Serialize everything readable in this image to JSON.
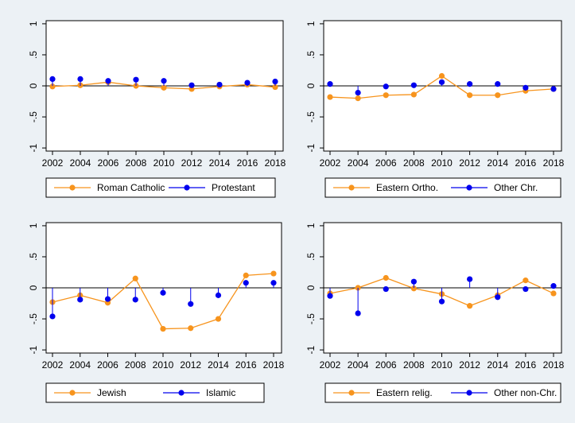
{
  "chart_data": [
    {
      "type": "line",
      "title": "",
      "xlabel": "",
      "ylabel": "",
      "x": [
        2002,
        2004,
        2006,
        2008,
        2010,
        2012,
        2014,
        2016,
        2018
      ],
      "xticks": [
        "2002",
        "2004",
        "2006",
        "2008",
        "2010",
        "2012",
        "2014",
        "2016",
        "2018"
      ],
      "ylim": [
        -1.05,
        1.05
      ],
      "yticks": [
        -1,
        -0.5,
        0,
        0.5,
        1
      ],
      "ytick_labels": [
        "-1",
        "-.5",
        "0",
        ".5",
        "1"
      ],
      "grid": false,
      "legend_position": "bottom",
      "series": [
        {
          "name": "Roman Catholic",
          "style": "line",
          "color": "#f7941d",
          "values": [
            -0.01,
            0.01,
            0.06,
            0.0,
            -0.03,
            -0.05,
            -0.01,
            0.02,
            -0.02
          ]
        },
        {
          "name": "Protestant",
          "style": "spike",
          "color": "#0000ee",
          "values": [
            0.11,
            0.11,
            0.08,
            0.1,
            0.08,
            0.01,
            0.02,
            0.05,
            0.07
          ]
        }
      ]
    },
    {
      "type": "line",
      "title": "",
      "xlabel": "",
      "ylabel": "",
      "x": [
        2002,
        2004,
        2006,
        2008,
        2010,
        2012,
        2014,
        2016,
        2018
      ],
      "xticks": [
        "2002",
        "2004",
        "2006",
        "2008",
        "2010",
        "2012",
        "2014",
        "2016",
        "2018"
      ],
      "ylim": [
        -1.05,
        1.05
      ],
      "yticks": [
        -1,
        -0.5,
        0,
        0.5,
        1
      ],
      "ytick_labels": [
        "-1",
        "-.5",
        "0",
        ".5",
        "1"
      ],
      "grid": false,
      "legend_position": "bottom",
      "series": [
        {
          "name": "Eastern Ortho.",
          "style": "line",
          "color": "#f7941d",
          "values": [
            -0.18,
            -0.2,
            -0.15,
            -0.14,
            0.16,
            -0.15,
            -0.15,
            -0.08,
            -0.05
          ]
        },
        {
          "name": "Other Chr.",
          "style": "spike",
          "color": "#0000ee",
          "values": [
            0.03,
            -0.11,
            -0.01,
            0.01,
            0.06,
            0.03,
            0.03,
            -0.03,
            -0.05
          ]
        }
      ]
    },
    {
      "type": "line",
      "title": "",
      "xlabel": "",
      "ylabel": "",
      "x": [
        2002,
        2004,
        2006,
        2008,
        2010,
        2012,
        2014,
        2016,
        2018
      ],
      "xticks": [
        "2002",
        "2004",
        "2006",
        "2008",
        "2010",
        "2012",
        "2014",
        "2016",
        "2018"
      ],
      "ylim": [
        -1.05,
        1.05
      ],
      "yticks": [
        -1,
        -0.5,
        0,
        0.5,
        1
      ],
      "ytick_labels": [
        "-1",
        "-.5",
        "0",
        ".5",
        "1"
      ],
      "grid": false,
      "legend_position": "bottom",
      "series": [
        {
          "name": "Jewish",
          "style": "line",
          "color": "#f7941d",
          "values": [
            -0.23,
            -0.12,
            -0.24,
            0.15,
            -0.66,
            -0.65,
            -0.5,
            0.2,
            0.23
          ]
        },
        {
          "name": "Islamic",
          "style": "spike",
          "color": "#0000ee",
          "values": [
            -0.46,
            -0.19,
            -0.18,
            -0.19,
            -0.08,
            -0.26,
            -0.12,
            0.08,
            0.08
          ]
        }
      ]
    },
    {
      "type": "line",
      "title": "",
      "xlabel": "",
      "ylabel": "",
      "x": [
        2002,
        2004,
        2006,
        2008,
        2010,
        2012,
        2014,
        2016,
        2018
      ],
      "xticks": [
        "2002",
        "2004",
        "2006",
        "2008",
        "2010",
        "2012",
        "2014",
        "2016",
        "2018"
      ],
      "ylim": [
        -1.05,
        1.05
      ],
      "yticks": [
        -1,
        -0.5,
        0,
        0.5,
        1
      ],
      "ytick_labels": [
        "-1",
        "-.5",
        "0",
        ".5",
        "1"
      ],
      "grid": false,
      "legend_position": "bottom",
      "series": [
        {
          "name": "Eastern relig.",
          "style": "line",
          "color": "#f7941d",
          "values": [
            -0.09,
            0.0,
            0.16,
            -0.01,
            -0.1,
            -0.29,
            -0.12,
            0.12,
            -0.09
          ]
        },
        {
          "name": "Other non-Chr.",
          "style": "spike",
          "color": "#0000ee",
          "values": [
            -0.13,
            -0.41,
            -0.02,
            0.1,
            -0.22,
            0.14,
            -0.15,
            -0.02,
            0.03
          ]
        }
      ]
    }
  ]
}
